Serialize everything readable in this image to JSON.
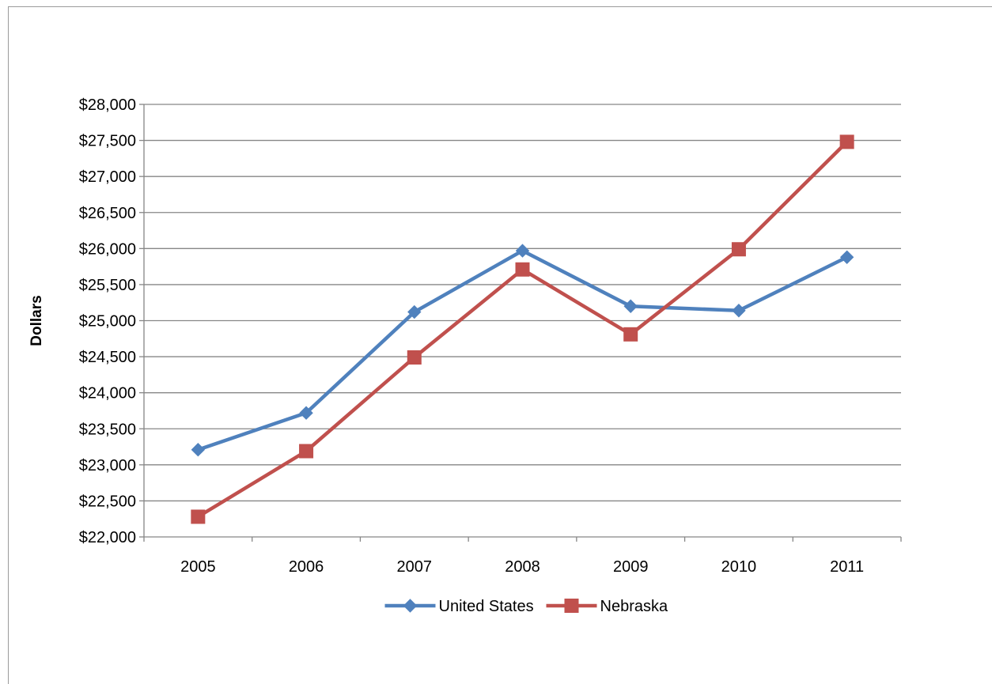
{
  "chart_data": {
    "type": "line",
    "title": "",
    "xlabel": "",
    "ylabel": "Dollars",
    "categories": [
      "2005",
      "2006",
      "2007",
      "2008",
      "2009",
      "2010",
      "2011"
    ],
    "ylim": [
      22000,
      28000
    ],
    "ytick_step": 500,
    "ytick_labels": [
      "$22,000",
      "$22,500",
      "$23,000",
      "$23,500",
      "$24,000",
      "$24,500",
      "$25,000",
      "$25,500",
      "$26,000",
      "$26,500",
      "$27,000",
      "$27,500",
      "$28,000"
    ],
    "grid": true,
    "legend_position": "bottom",
    "series": [
      {
        "name": "United States",
        "color": "#4f81bd",
        "marker": "diamond",
        "values": [
          23210,
          23720,
          25120,
          25970,
          25200,
          25140,
          25880
        ]
      },
      {
        "name": "Nebraska",
        "color": "#c0504d",
        "marker": "square",
        "values": [
          22280,
          23190,
          24490,
          25710,
          24810,
          25990,
          27480
        ]
      }
    ]
  }
}
